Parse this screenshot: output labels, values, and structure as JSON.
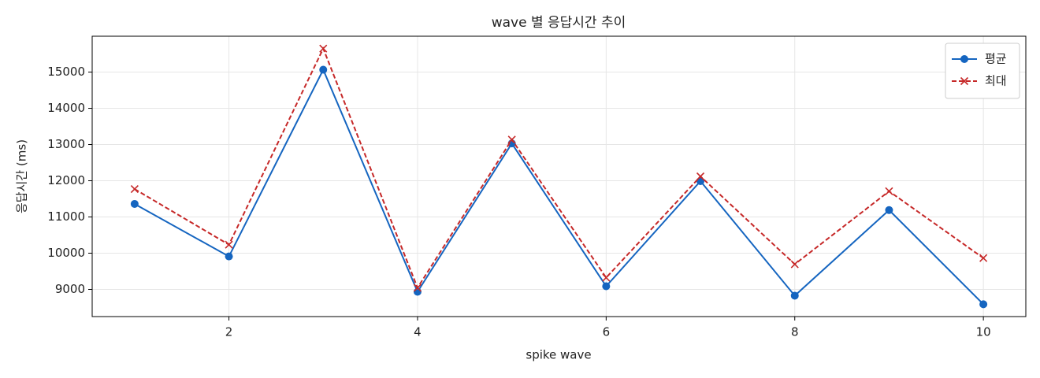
{
  "chart_data": {
    "type": "line",
    "title": "wave 별 응답시간 추이",
    "x_label": "spike wave",
    "y_label": "응답시간 (ms)",
    "x": [
      1,
      2,
      3,
      4,
      5,
      6,
      7,
      8,
      9,
      10
    ],
    "series": [
      {
        "name": "평균",
        "color": "#1565c0",
        "marker": "o",
        "linestyle": "solid",
        "values": [
          11360,
          9910,
          15065,
          8935,
          13030,
          9087,
          11990,
          8827,
          11190,
          8590
        ]
      },
      {
        "name": "최대",
        "color": "#c62828",
        "marker": "x",
        "linestyle": "dashed",
        "values": [
          11770,
          10235,
          15650,
          9045,
          13135,
          9325,
          12120,
          9695,
          11710,
          9865
        ]
      }
    ],
    "xlim": [
      0.55,
      10.45
    ],
    "xticks": [
      2,
      4,
      6,
      8,
      10
    ],
    "ylim": [
      8250,
      15990
    ],
    "yticks": [
      9000,
      10000,
      11000,
      12000,
      13000,
      14000,
      15000
    ],
    "grid": true,
    "legend": "upper right"
  }
}
